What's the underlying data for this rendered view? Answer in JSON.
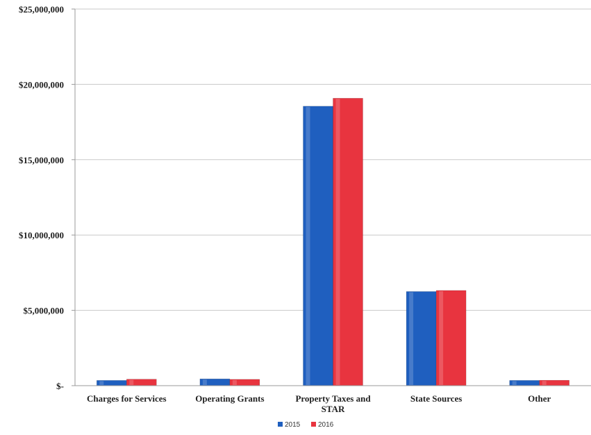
{
  "chart_data": {
    "type": "bar",
    "categories": [
      [
        "Charges for Services"
      ],
      [
        "Operating Grants"
      ],
      [
        "Property Taxes and",
        "STAR"
      ],
      [
        "State Sources"
      ],
      [
        "Other"
      ]
    ],
    "series": [
      {
        "name": "2015",
        "color": "#1f5fbf",
        "values": [
          350000,
          450000,
          18550000,
          6250000,
          350000
        ]
      },
      {
        "name": "2016",
        "color": "#e8343f",
        "values": [
          430000,
          420000,
          19080000,
          6320000,
          360000
        ]
      }
    ],
    "y_ticks": [
      {
        "value": 0,
        "label": "$-"
      },
      {
        "value": 5000000,
        "label": "$5,000,000"
      },
      {
        "value": 10000000,
        "label": "$10,000,000"
      },
      {
        "value": 15000000,
        "label": "$15,000,000"
      },
      {
        "value": 20000000,
        "label": "$20,000,000"
      },
      {
        "value": 25000000,
        "label": "$25,000,000"
      }
    ],
    "ylim": [
      0,
      25000000
    ],
    "grid": true,
    "legend_position": "bottom-center"
  }
}
